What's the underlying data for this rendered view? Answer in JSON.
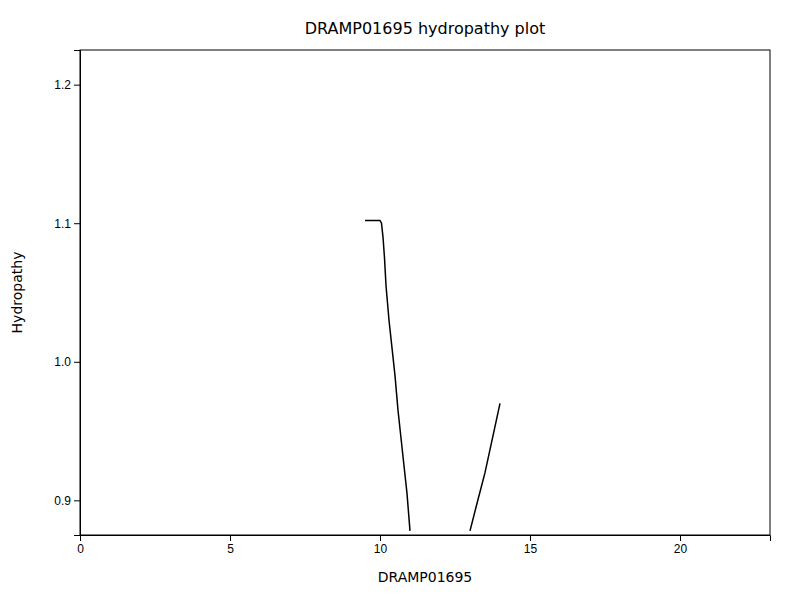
{
  "chart_data": {
    "type": "line",
    "title": "DRAMP01695 hydropathy plot",
    "xlabel": "DRAMP01695",
    "ylabel": "Hydropathy",
    "xlim": [
      0,
      23
    ],
    "ylim": [
      0.875,
      1.225
    ],
    "xticks": [
      0,
      5,
      10,
      15,
      20
    ],
    "yticks": [
      0.9,
      {
        "value": 1.0,
        "label": "1.0"
      },
      1.1,
      1.2
    ],
    "grid": false,
    "series": [
      {
        "color": "black",
        "x": [
          9.5,
          10.0,
          10.05,
          10.1,
          10.15,
          10.2,
          10.3,
          10.4,
          10.5,
          10.6,
          10.7,
          10.8,
          10.9,
          11.0
        ],
        "values": [
          1.102,
          1.102,
          1.1,
          1.09,
          1.075,
          1.055,
          1.03,
          1.01,
          0.99,
          0.965,
          0.945,
          0.925,
          0.905,
          0.878
        ]
      },
      {
        "color": "black",
        "x": [
          13.0,
          13.2,
          13.5,
          13.8,
          14.0
        ],
        "values": [
          0.878,
          0.895,
          0.92,
          0.95,
          0.97
        ]
      }
    ]
  }
}
